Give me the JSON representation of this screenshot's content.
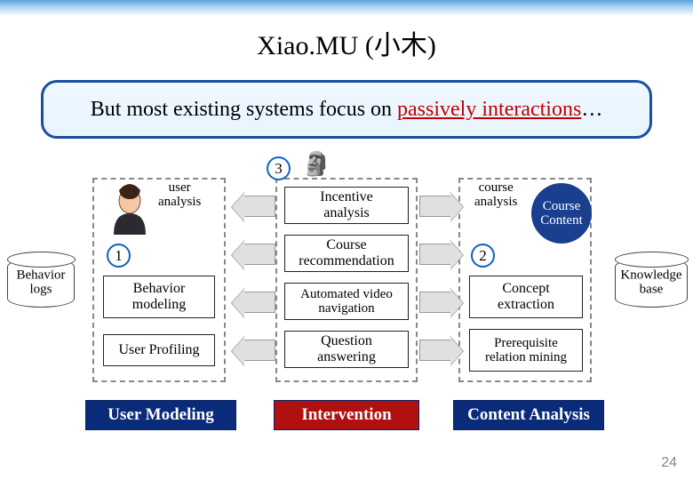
{
  "title": "Xiao.MU (小木)",
  "callout_pre": "But most existing systems focus on ",
  "callout_hl": "passively interactions",
  "callout_post": "…",
  "cylinders": {
    "left": "Behavior\nlogs",
    "right": "Knowledge\nbase"
  },
  "columns": {
    "user": {
      "header": "user\nanalysis",
      "num": "1",
      "boxes": [
        "Behavior\nmodeling",
        "User Profiling"
      ],
      "label": "User Modeling",
      "label_bg": "#0a2a7a"
    },
    "mid": {
      "num": "3",
      "boxes": [
        "Incentive\nanalysis",
        "Course\nrecommendation",
        "Automated video\nnavigation",
        "Question\nanswering"
      ],
      "label": "Intervention",
      "label_bg": "#b01010"
    },
    "course": {
      "header": "course\nanalysis",
      "num": "2",
      "circle": "Course\nContent",
      "boxes": [
        "Concept\nextraction",
        "Prerequisite\nrelation mining"
      ],
      "label": "Content Analysis",
      "label_bg": "#0a2a7a"
    }
  },
  "colors": {
    "callout_border": "#1a4ea0",
    "num_border": "#1060c0",
    "circle_fill": "#1a3f8f",
    "dashed": "#888888"
  },
  "page": "24"
}
